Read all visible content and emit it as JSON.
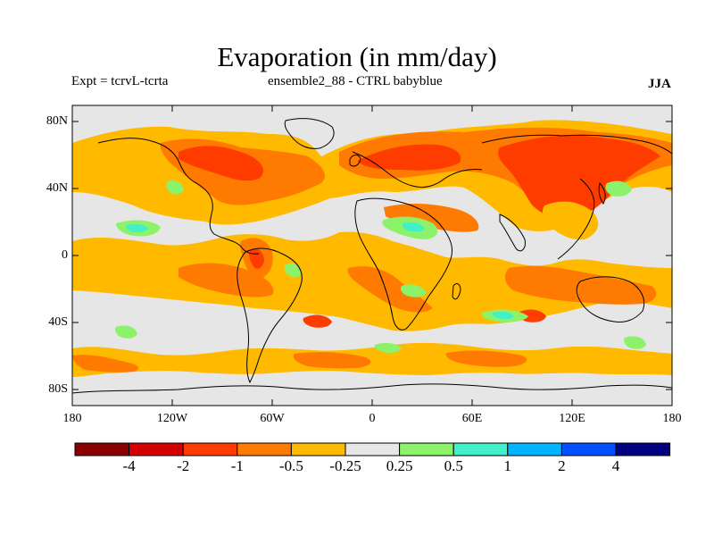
{
  "title": "Evaporation (in mm/day)",
  "expt_label": "Expt = tcrvL-tcrta",
  "subtitle": "ensemble2_88 - CTRL babyblue",
  "season": "JJA",
  "lat_labels": [
    "80N",
    "40N",
    "0",
    "40S",
    "80S"
  ],
  "lon_labels": [
    "180",
    "120W",
    "60W",
    "0",
    "60E",
    "120E",
    "180"
  ],
  "colorbar": {
    "labels": [
      "-4",
      "-2",
      "-1",
      "-0.5",
      "-0.25",
      "0.25",
      "0.5",
      "1",
      "2",
      "4"
    ],
    "colors": [
      "#8b0000",
      "#d40000",
      "#ff3c00",
      "#ff7a00",
      "#ffba00",
      "#e6e6e6",
      "#8cf26a",
      "#3ff0c8",
      "#00b4ff",
      "#0050ff",
      "#000080"
    ]
  },
  "colors": {
    "ocean_background": "#e6e6e6",
    "coastline": "#000000"
  }
}
